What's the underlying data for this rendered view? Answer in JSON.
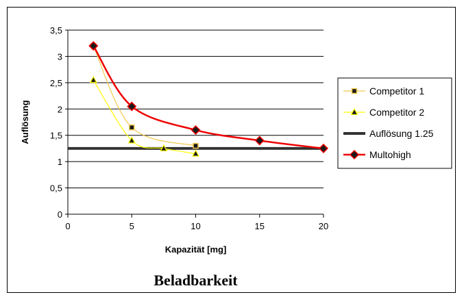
{
  "chart_data": {
    "type": "line",
    "title": "Beladbarkeit",
    "xlabel": "Kapazität [mg]",
    "ylabel": "Auflösung",
    "xlim": [
      0,
      20
    ],
    "ylim": [
      0,
      3.5
    ],
    "x_ticks": [
      "0",
      "5",
      "10",
      "15",
      "20"
    ],
    "y_ticks": [
      "0",
      "0,5",
      "1",
      "1,5",
      "2",
      "2,5",
      "3",
      "3,5"
    ],
    "grid": "horizontal",
    "legend_position": "right",
    "series": [
      {
        "name": "Competitor 1",
        "color": "#f2c84b",
        "marker": "square",
        "marker_color": "#1a1a1a",
        "marker_fill": "#f2c84b",
        "points": [
          [
            2,
            3.2
          ],
          [
            5,
            1.65
          ],
          [
            10,
            1.3
          ]
        ]
      },
      {
        "name": "Competitor 2",
        "color": "#ffff00",
        "marker": "triangle",
        "marker_color": "#1a1a1a",
        "marker_fill": "#ffff00",
        "points": [
          [
            2,
            2.55
          ],
          [
            5,
            1.4
          ],
          [
            7.5,
            1.25
          ],
          [
            10,
            1.15
          ]
        ]
      },
      {
        "name": "Auflösung 1.25",
        "color": "#333333",
        "marker": "none",
        "points": [
          [
            0,
            1.25
          ],
          [
            20,
            1.25
          ]
        ]
      },
      {
        "name": "Multohigh",
        "color": "#ee0000",
        "marker": "diamond",
        "marker_color": "#1a1a1a",
        "marker_fill": "#8b0000",
        "points": [
          [
            2,
            3.2
          ],
          [
            5,
            2.05
          ],
          [
            10,
            1.6
          ],
          [
            15,
            1.4
          ],
          [
            20,
            1.25
          ]
        ]
      }
    ]
  }
}
